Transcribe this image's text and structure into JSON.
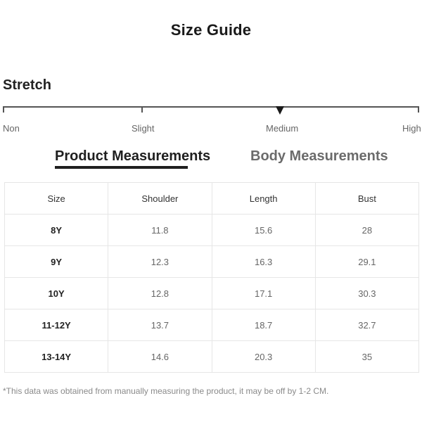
{
  "title": "Size Guide",
  "stretch": {
    "heading": "Stretch",
    "levels": [
      "Non",
      "Slight",
      "Medium",
      "High"
    ],
    "selected": "Medium"
  },
  "tabs": [
    {
      "label": "Product Measurements",
      "active": true
    },
    {
      "label": "Body Measurements",
      "active": false
    }
  ],
  "table": {
    "headers": [
      "Size",
      "Shoulder",
      "Length",
      "Bust"
    ],
    "rows": [
      [
        "8Y",
        "11.8",
        "15.6",
        "28"
      ],
      [
        "9Y",
        "12.3",
        "16.3",
        "29.1"
      ],
      [
        "10Y",
        "12.8",
        "17.1",
        "30.3"
      ],
      [
        "11-12Y",
        "13.7",
        "18.7",
        "32.7"
      ],
      [
        "13-14Y",
        "14.6",
        "20.3",
        "35"
      ]
    ]
  },
  "footnote": "*This data was obtained from manually measuring the product, it may be off by 1-2 CM."
}
